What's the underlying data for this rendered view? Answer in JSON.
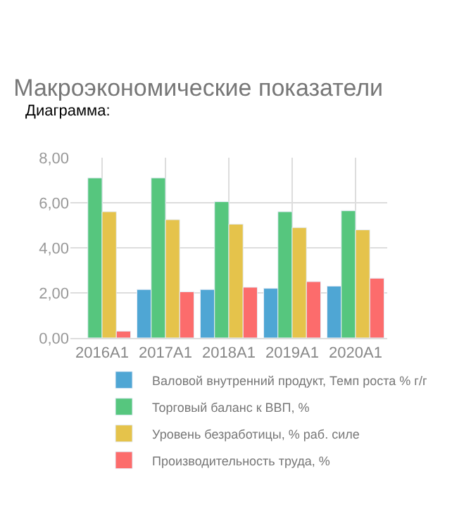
{
  "chart_data": {
    "type": "bar",
    "title": "Макроэкономические показатели",
    "annotations": [
      "Диаграмма:"
    ],
    "categories": [
      "2016A1",
      "2017A1",
      "2018A1",
      "2019A1",
      "2020A1"
    ],
    "series": [
      {
        "name": "Валовой внутренний продукт, Темп роста % г/г",
        "color": "#4fa6d4",
        "values": [
          null,
          2.15,
          2.15,
          2.2,
          2.3
        ]
      },
      {
        "name": "Торговый баланс к ВВП, %",
        "color": "#56c67e",
        "values": [
          7.1,
          7.1,
          6.05,
          5.6,
          5.65
        ]
      },
      {
        "name": "Уровень безработицы, % раб. силе",
        "color": "#e5c34b",
        "values": [
          5.6,
          5.25,
          5.05,
          4.9,
          4.8
        ]
      },
      {
        "name": "Производительность труда, %",
        "color": "#fc6c6c",
        "values": [
          0.3,
          2.05,
          2.25,
          2.5,
          2.65
        ]
      }
    ],
    "ylim": [
      0,
      8
    ],
    "yticks": [
      {
        "value": 0,
        "label": "0,00"
      },
      {
        "value": 2,
        "label": "2,00"
      },
      {
        "value": 4,
        "label": "4,00"
      },
      {
        "value": 6,
        "label": "6,00"
      },
      {
        "value": 8,
        "label": "8,00"
      }
    ],
    "grid": true,
    "legend": "bottom"
  }
}
